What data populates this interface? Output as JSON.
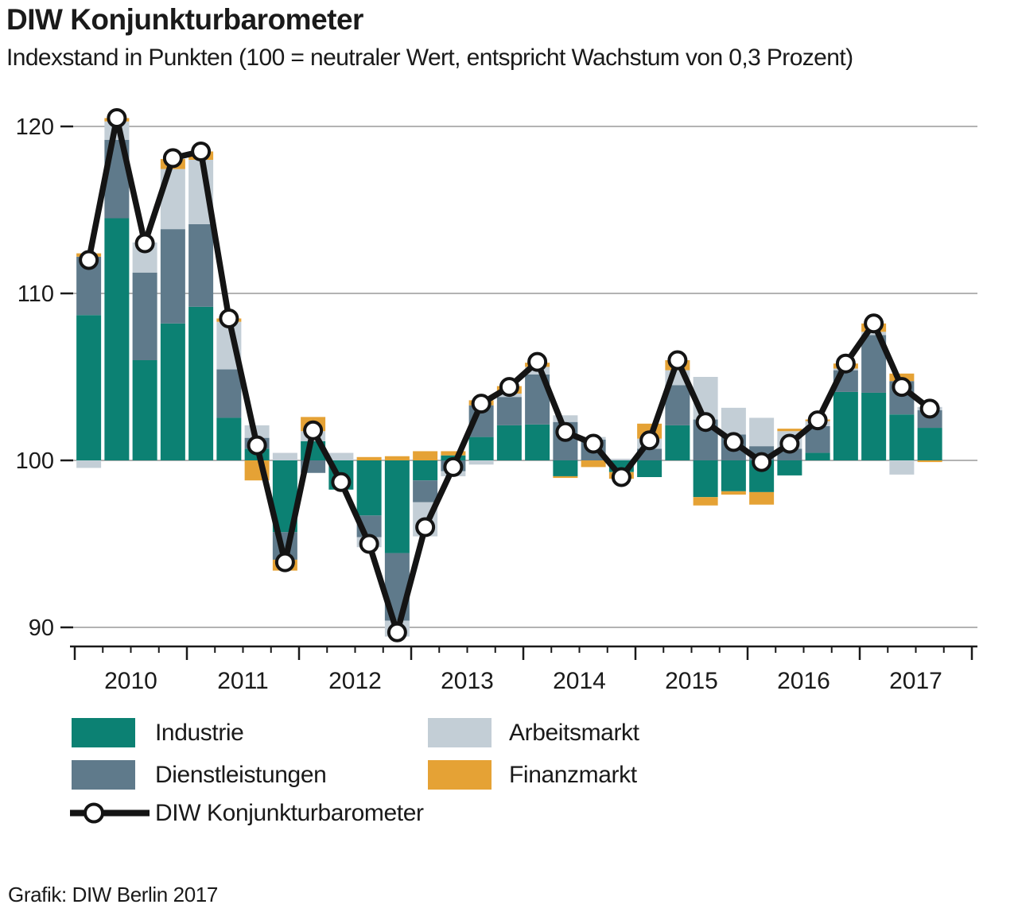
{
  "header": {
    "title": "DIW Konjunkturbarometer",
    "subtitle": "Indexstand in Punkten (100 = neutraler Wert, entspricht Wachstum von 0,3 Prozent)"
  },
  "source": "Grafik: DIW Berlin 2017",
  "legend": {
    "industrie": "Industrie",
    "dienstleistungen": "Dienstleistungen",
    "arbeitsmarkt": "Arbeitsmarkt",
    "finanzmarkt": "Finanzmarkt",
    "line": "DIW Konjunkturbarometer"
  },
  "colors": {
    "industrie": "#0c8173",
    "dienstleistungen": "#5f7a8b",
    "arbeitsmarkt": "#c3ced6",
    "finanzmarkt": "#e5a235",
    "line": "#141414",
    "marker_fill": "#ffffff",
    "grid": "#9a9a9a",
    "axis": "#1a1a1a"
  },
  "chart_data": {
    "type": "bar",
    "stacked": true,
    "baseline": 100,
    "title": "DIW Konjunkturbarometer",
    "ylabel": "Indexstand in Punkten",
    "grid": true,
    "legend_position": "bottom-left",
    "yticks": [
      90,
      100,
      110,
      120
    ],
    "ylim": [
      88,
      122
    ],
    "year_labels": [
      "2010",
      "2011",
      "2012",
      "2013",
      "2014",
      "2015",
      "2016",
      "2017"
    ],
    "x": [
      "2010 Q1",
      "2010 Q2",
      "2010 Q3",
      "2010 Q4",
      "2011 Q1",
      "2011 Q2",
      "2011 Q3",
      "2011 Q4",
      "2012 Q1",
      "2012 Q2",
      "2012 Q3",
      "2012 Q4",
      "2013 Q1",
      "2013 Q2",
      "2013 Q3",
      "2013 Q4",
      "2014 Q1",
      "2014 Q2",
      "2014 Q3",
      "2014 Q4",
      "2015 Q1",
      "2015 Q2",
      "2015 Q3",
      "2015 Q4",
      "2016 Q1",
      "2016 Q2",
      "2016 Q3",
      "2016 Q4",
      "2017 Q1",
      "2017 Q2",
      "2017 Q3"
    ],
    "series": [
      {
        "name": "Industrie",
        "color": "#0c8173",
        "values": [
          8.7,
          14.5,
          6.0,
          8.2,
          9.2,
          2.55,
          0.7,
          -4.3,
          1.15,
          -1.75,
          -3.3,
          -5.55,
          -1.2,
          0.3,
          1.4,
          2.1,
          2.15,
          -0.95,
          0.0,
          -0.7,
          -1.0,
          2.1,
          -2.2,
          -1.85,
          -1.9,
          -0.9,
          0.45,
          4.1,
          4.05,
          2.75,
          1.95
        ]
      },
      {
        "name": "Dienstleistungen",
        "color": "#5f7a8b",
        "values": [
          3.5,
          4.7,
          5.25,
          5.65,
          4.95,
          2.9,
          0.65,
          -1.65,
          -0.75,
          0.0,
          -1.3,
          -4.05,
          -1.3,
          -0.65,
          1.9,
          1.7,
          3.0,
          2.3,
          1.25,
          0.0,
          0.7,
          2.4,
          2.45,
          1.55,
          0.85,
          0.7,
          1.6,
          1.3,
          3.45,
          2.0,
          1.05
        ]
      },
      {
        "name": "Arbeitsmarkt",
        "color": "#c3ced6",
        "values": [
          -0.45,
          1.1,
          1.8,
          3.6,
          3.85,
          2.85,
          0.75,
          0.45,
          0.6,
          0.45,
          -0.6,
          -0.95,
          -2.05,
          -0.3,
          -0.25,
          0.2,
          0.45,
          0.4,
          0.15,
          0.1,
          0.6,
          0.9,
          2.55,
          1.6,
          1.7,
          1.05,
          0.3,
          0.1,
          0.2,
          -0.85,
          0.2
        ]
      },
      {
        "name": "Finanzmarkt",
        "color": "#e5a235",
        "values": [
          0.2,
          0.2,
          0.0,
          0.6,
          0.5,
          0.2,
          -1.2,
          -0.65,
          0.85,
          0.0,
          0.2,
          0.25,
          0.55,
          0.25,
          0.3,
          0.45,
          0.25,
          -0.1,
          -0.4,
          -0.4,
          0.9,
          0.6,
          -0.5,
          -0.2,
          -0.75,
          0.15,
          0.1,
          0.3,
          0.5,
          0.45,
          -0.1
        ]
      }
    ],
    "line_series": {
      "name": "DIW Konjunkturbarometer",
      "color": "#141414",
      "values": [
        112.0,
        120.5,
        113.0,
        118.1,
        118.5,
        108.5,
        100.9,
        93.9,
        101.8,
        98.7,
        95.0,
        89.7,
        96.0,
        99.6,
        103.4,
        104.4,
        105.9,
        101.7,
        101.0,
        99.0,
        101.2,
        106.0,
        102.3,
        101.1,
        99.9,
        101.0,
        102.4,
        105.8,
        108.2,
        104.4,
        103.1
      ]
    }
  }
}
